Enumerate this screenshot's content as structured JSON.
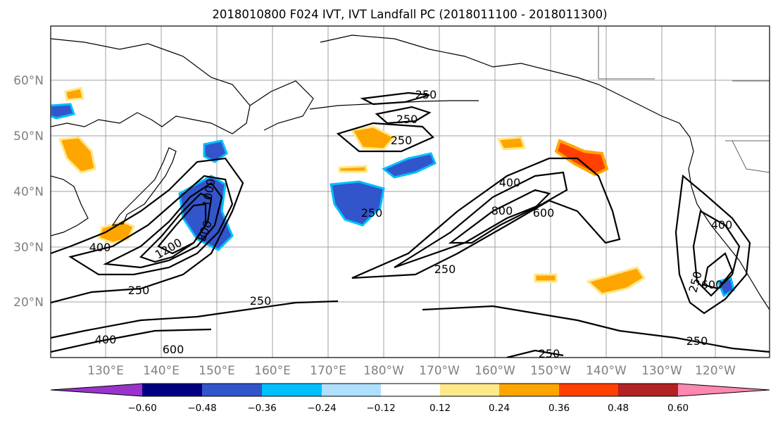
{
  "title": "2018010800 F024 IVT, IVT Landfall PC (2018011100 - 2018011300)",
  "map": {
    "lat_labels": [
      "20°N",
      "30°N",
      "40°N",
      "50°N",
      "60°N"
    ],
    "lon_labels": [
      "130°E",
      "140°E",
      "150°E",
      "160°E",
      "170°E",
      "180°W",
      "170°W",
      "160°W",
      "150°W",
      "140°W",
      "130°W",
      "120°W"
    ],
    "contour_labels": [
      "250",
      "250",
      "250",
      "250",
      "250",
      "250",
      "250",
      "250",
      "400",
      "400",
      "400",
      "400",
      "600",
      "600",
      "600",
      "800",
      "800",
      "1000",
      "1200",
      "250",
      "250"
    ],
    "colors": {
      "coastline": "#000000",
      "grid": "#a0a0a0",
      "contour": "#000000"
    }
  },
  "colorbar": {
    "ticks": [
      "−0.60",
      "−0.48",
      "−0.36",
      "−0.24",
      "−0.12",
      "0.12",
      "0.24",
      "0.36",
      "0.48",
      "0.60"
    ],
    "colors": [
      "#9933cc",
      "#000080",
      "#3355cc",
      "#00bfff",
      "#b0e0ff",
      "#ffffff",
      "#ffe88a",
      "#ffa500",
      "#ff4000",
      "#b22222",
      "#ff88b0"
    ]
  }
}
